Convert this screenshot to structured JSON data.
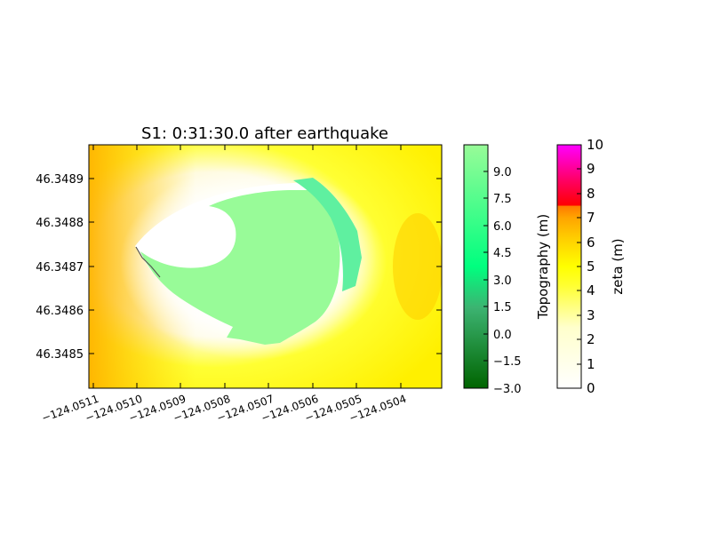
{
  "chart_data": {
    "type": "heatmap",
    "title": "S1: 0:31:30.0 after earthquake",
    "xlabel": "",
    "ylabel": "",
    "x_ticks": [
      "−124.0511",
      "−124.0510",
      "−124.0509",
      "−124.0508",
      "−124.0507",
      "−124.0506",
      "−124.0505",
      "−124.0504"
    ],
    "x_tick_values": [
      -124.0511,
      -124.051,
      -124.0509,
      -124.0508,
      -124.0507,
      -124.0506,
      -124.0505,
      -124.0504
    ],
    "y_ticks": [
      "46.3485",
      "46.3486",
      "46.3487",
      "46.3488",
      "46.3489"
    ],
    "y_tick_values": [
      46.3485,
      46.3486,
      46.3487,
      46.3488,
      46.3489
    ],
    "xlim": [
      -124.05112,
      -124.05032
    ],
    "ylim": [
      46.34843,
      46.34899
    ],
    "colorbars": [
      {
        "label": "Topography (m)",
        "range": [
          -3.0,
          10.5
        ],
        "ticks": [
          "−3.0",
          "−1.5",
          "0.0",
          "1.5",
          "3.0",
          "4.5",
          "6.0",
          "7.5",
          "9.0"
        ],
        "tick_values": [
          -3.0,
          -1.5,
          0.0,
          1.5,
          3.0,
          4.5,
          6.0,
          7.5,
          9.0
        ],
        "colors": [
          "#006400",
          "#3cb371",
          "#00ff7f",
          "#98fb98"
        ]
      },
      {
        "label": "zeta (m)",
        "range": [
          0,
          10
        ],
        "ticks": [
          "0",
          "1",
          "2",
          "3",
          "4",
          "5",
          "6",
          "7",
          "8",
          "9",
          "10"
        ],
        "tick_values": [
          0,
          1,
          2,
          3,
          4,
          5,
          6,
          7,
          8,
          9,
          10
        ],
        "colors": [
          "#ffffff",
          "#ffff00",
          "#ffa500",
          "#ff4500",
          "#ff0000",
          "#ff00ff"
        ]
      }
    ],
    "grid": false,
    "legend": "colorbars-right"
  }
}
